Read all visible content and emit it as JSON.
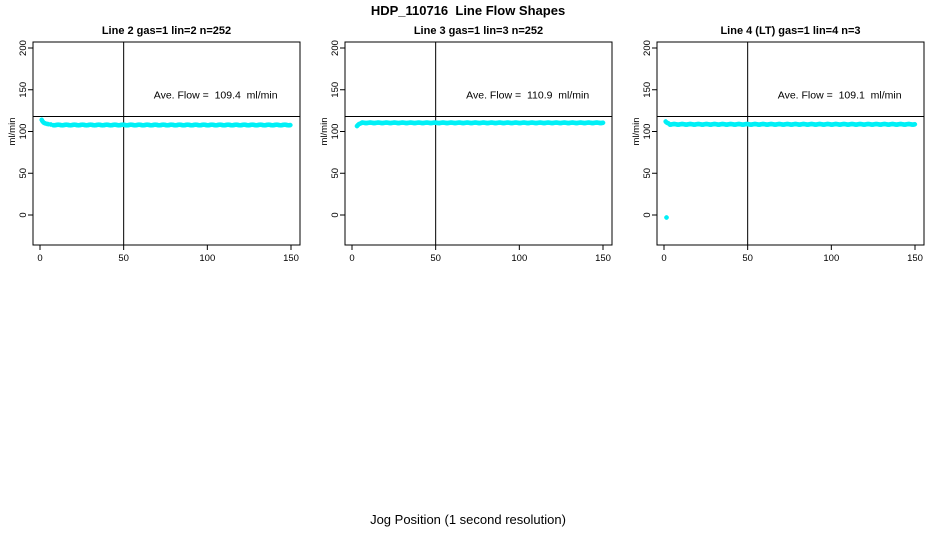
{
  "title": "HDP_110716  Line Flow Shapes",
  "xlabel": "Jog Position (1 second resolution)",
  "style": {
    "point_color": "#00F0F6",
    "axis_color": "#000000",
    "background": "#ffffff"
  },
  "chart_data": [
    {
      "type": "scatter",
      "title": "Line 2 gas=1 lin=2 n=252",
      "ylabel": "ml/min",
      "annotation": "Ave. Flow =  109.4  ml/min",
      "ave_flow": 109.4,
      "x_ticks": [
        0,
        50,
        100,
        150
      ],
      "y_ticks": [
        0,
        50,
        100,
        150,
        200
      ],
      "xlim": [
        0,
        150
      ],
      "ylim": [
        0,
        200
      ],
      "vline_x": 50,
      "hline_y": 118,
      "points_initial": [
        [
          1,
          114
        ],
        [
          1.4,
          112.5
        ],
        [
          1.8,
          111.5
        ],
        [
          2.3,
          110.5
        ],
        [
          3,
          109.8
        ],
        [
          4,
          109.2
        ],
        [
          5,
          108.8
        ],
        [
          6.5,
          108.4
        ]
      ],
      "flat": {
        "x_start": 8,
        "x_end": 150,
        "y": 107.8,
        "step": 0.6,
        "wiggle": 0.35
      },
      "outliers": []
    },
    {
      "type": "scatter",
      "title": "Line 3 gas=1 lin=3 n=252",
      "ylabel": "ml/min",
      "annotation": "Ave. Flow =  110.9  ml/min",
      "ave_flow": 110.9,
      "x_ticks": [
        0,
        50,
        100,
        150
      ],
      "y_ticks": [
        0,
        50,
        100,
        150,
        200
      ],
      "xlim": [
        0,
        150
      ],
      "ylim": [
        0,
        200
      ],
      "vline_x": 50,
      "hline_y": 118,
      "points_initial": [
        [
          3,
          106.5
        ],
        [
          3.4,
          107.5
        ],
        [
          3.9,
          108.5
        ],
        [
          4.6,
          109.3
        ],
        [
          5.5,
          110
        ]
      ],
      "flat": {
        "x_start": 6,
        "x_end": 150,
        "y": 110.4,
        "step": 0.6,
        "wiggle": 0.3
      },
      "outliers": []
    },
    {
      "type": "scatter",
      "title": "Line 4 (LT) gas=1 lin=4 n=3",
      "ylabel": "ml/min",
      "annotation": "Ave. Flow =  109.1  ml/min",
      "ave_flow": 109.1,
      "x_ticks": [
        0,
        50,
        100,
        150
      ],
      "y_ticks": [
        0,
        50,
        100,
        150,
        200
      ],
      "xlim": [
        0,
        150
      ],
      "ylim": [
        0,
        200
      ],
      "vline_x": 50,
      "hline_y": 118,
      "points_initial": [
        [
          1,
          112
        ],
        [
          1.4,
          111
        ],
        [
          2,
          110.3
        ],
        [
          2.8,
          109.6
        ]
      ],
      "flat": {
        "x_start": 3.5,
        "x_end": 150,
        "y": 108.6,
        "step": 0.6,
        "wiggle": 0.35
      },
      "outliers": [
        [
          1.5,
          -3
        ]
      ]
    }
  ]
}
